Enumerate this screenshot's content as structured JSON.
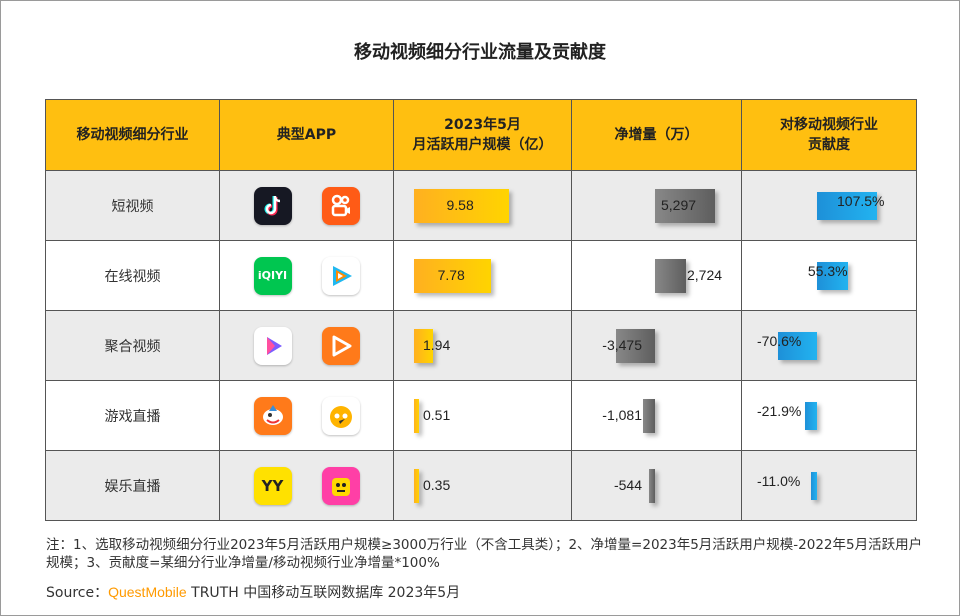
{
  "title": "移动视频细分行业流量及贡献度",
  "headers": [
    "移动视频细分行业",
    "典型APP",
    "2023年5月\n月活跃用户规模（亿）",
    "净增量（万）",
    "对移动视频行业\n贡献度"
  ],
  "icons": [
    [
      "douyin-icon",
      "kuaishou-icon"
    ],
    [
      "iqiyi-icon",
      "tencent-video-icon"
    ],
    [
      "aggregate-video-icon",
      "video-play-icon"
    ],
    [
      "shark-live-icon",
      "huya-icon"
    ],
    [
      "yy-icon",
      "entertainment-live-icon"
    ]
  ],
  "icon_text": {
    "iqiyi-icon": "iQIYI",
    "yy-icon": "YY"
  },
  "colors": {
    "header": "#ffbf10",
    "bar_yellow": "#ffc000",
    "bar_gray": "#6e6e6e",
    "bar_blue": "#1e9bdc",
    "brand": "#ff9a00"
  },
  "chart_data": {
    "type": "table",
    "categories": [
      "短视频",
      "在线视频",
      "聚合视频",
      "游戏直播",
      "娱乐直播"
    ],
    "series": [
      {
        "name": "2023年5月月活跃用户规模（亿）",
        "values": [
          9.58,
          7.78,
          1.94,
          0.51,
          0.35
        ],
        "labels": [
          "9.58",
          "7.78",
          "1.94",
          "0.51",
          "0.35"
        ]
      },
      {
        "name": "净增量（万）",
        "values": [
          5297,
          2724,
          -3475,
          -1081,
          -544
        ],
        "labels": [
          "5,297",
          "2,724",
          "-3,475",
          "-1,081",
          "-544"
        ]
      },
      {
        "name": "对移动视频行业贡献度",
        "values": [
          107.5,
          55.3,
          -70.6,
          -21.9,
          -11.0
        ],
        "labels": [
          "107.5%",
          "55.3%",
          "-70.6%",
          "-21.9%",
          "-11.0%"
        ]
      }
    ]
  },
  "note": "注：1、选取移动视频细分行业2023年5月活跃用户规模≥3000万行业（不含工具类）；2、净增量=2023年5月活跃用户规模-2022年5月活跃用户规模；3、贡献度=某细分行业净增量/移动视频行业净增量*100%",
  "source": {
    "prefix": "Source：",
    "brand": "QuestMobile",
    "suffix": " TRUTH 中国移动互联网数据库 2023年5月"
  }
}
